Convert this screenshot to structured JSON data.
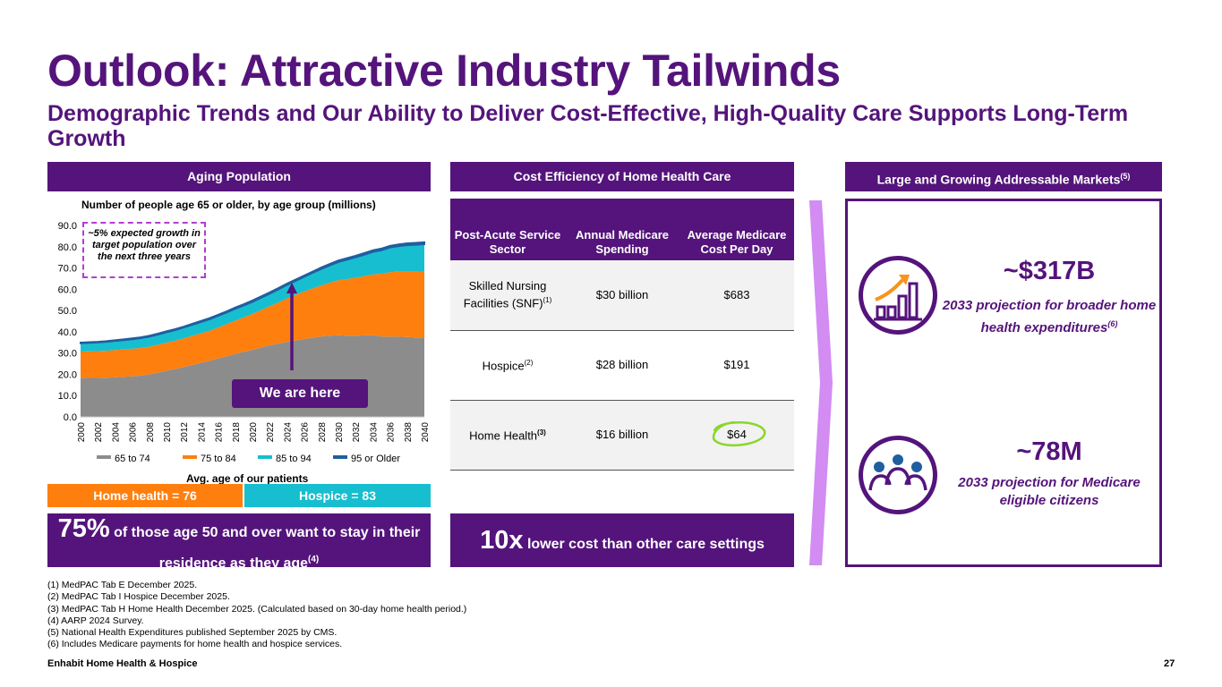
{
  "title": "Outlook: Attractive Industry Tailwinds",
  "subtitle": "Demographic Trends and Our Ability to Deliver Cost-Effective, High-Quality Care Supports Long-Term Growth",
  "aging": {
    "header": "Aging Population",
    "callout": "~5% expected growth in target population over the next three years",
    "here_label": "We are here",
    "avg_label": "Avg. age of our patients",
    "home_health_pill": "Home health = 76",
    "hospice_pill": "Hospice = 83",
    "stat_big": "75%",
    "stat_text": "of those age 50 and over want to stay in their residence as they age",
    "stat_sup": "(4)"
  },
  "chart_data": {
    "type": "area",
    "stacked": true,
    "title": "Number of people age 65 or older, by age group (millions)",
    "xlabel": "",
    "ylabel": "",
    "ylim": [
      0,
      90
    ],
    "yticks": [
      "0.0",
      "10.0",
      "20.0",
      "30.0",
      "40.0",
      "50.0",
      "60.0",
      "70.0",
      "80.0",
      "90.0"
    ],
    "x": [
      2000,
      2001,
      2002,
      2003,
      2004,
      2005,
      2006,
      2007,
      2008,
      2009,
      2010,
      2011,
      2012,
      2013,
      2014,
      2015,
      2016,
      2017,
      2018,
      2019,
      2020,
      2021,
      2022,
      2023,
      2024,
      2025,
      2026,
      2027,
      2028,
      2029,
      2030,
      2031,
      2032,
      2033,
      2034,
      2035,
      2036,
      2037,
      2038,
      2039,
      2040
    ],
    "xticks": [
      "2000",
      "2002",
      "2004",
      "2006",
      "2008",
      "2010",
      "2012",
      "2014",
      "2016",
      "2018",
      "2020",
      "2022",
      "2024",
      "2026",
      "2028",
      "2030",
      "2032",
      "2034",
      "2036",
      "2038",
      "2040"
    ],
    "series": [
      {
        "name": "65 to 74",
        "color": "#8c8c8c",
        "values": [
          18.4,
          18.3,
          18.3,
          18.4,
          18.6,
          18.8,
          19.0,
          19.4,
          20.0,
          20.8,
          21.7,
          22.5,
          23.4,
          24.4,
          25.4,
          26.4,
          27.4,
          28.5,
          29.6,
          30.6,
          31.5,
          32.6,
          33.7,
          34.4,
          35.2,
          35.9,
          36.6,
          37.2,
          37.8,
          38.2,
          38.4,
          38.2,
          38.1,
          38.3,
          38.4,
          37.8,
          37.7,
          37.7,
          37.5,
          37.3,
          37.2
        ]
      },
      {
        "name": "75 to 84",
        "color": "#ff7f0e",
        "values": [
          12.3,
          12.5,
          12.6,
          12.7,
          12.8,
          12.9,
          13.0,
          13.0,
          13.0,
          13.1,
          13.2,
          13.3,
          13.5,
          13.7,
          13.9,
          14.1,
          14.6,
          15.1,
          15.6,
          16.2,
          16.9,
          17.6,
          18.3,
          19.4,
          20.5,
          21.4,
          22.3,
          23.2,
          24.0,
          24.9,
          25.8,
          26.6,
          27.3,
          27.9,
          28.6,
          29.5,
          30.3,
          30.6,
          30.8,
          31.0,
          31.2
        ]
      },
      {
        "name": "85 to 94",
        "color": "#17becf",
        "values": [
          3.9,
          4.0,
          4.1,
          4.2,
          4.3,
          4.4,
          4.5,
          4.6,
          4.7,
          4.8,
          4.9,
          5.0,
          5.1,
          5.2,
          5.3,
          5.4,
          5.5,
          5.5,
          5.6,
          5.6,
          5.7,
          5.8,
          5.9,
          6.1,
          6.3,
          6.6,
          6.9,
          7.3,
          7.7,
          8.1,
          8.6,
          9.1,
          9.6,
          10.0,
          10.5,
          11.0,
          11.6,
          12.0,
          12.4,
          12.6,
          12.8
        ]
      },
      {
        "name": "95 or Older",
        "color": "#1f5fa0",
        "values": [
          0.3,
          0.3,
          0.3,
          0.3,
          0.3,
          0.3,
          0.4,
          0.4,
          0.4,
          0.4,
          0.4,
          0.4,
          0.4,
          0.5,
          0.5,
          0.5,
          0.5,
          0.5,
          0.6,
          0.6,
          0.6,
          0.6,
          0.6,
          0.6,
          0.6,
          0.6,
          0.6,
          0.6,
          0.7,
          0.7,
          0.7,
          0.7,
          0.7,
          0.8,
          0.8,
          0.8,
          0.8,
          0.8,
          0.9,
          0.9,
          0.9
        ]
      }
    ],
    "legend_position": "bottom",
    "grid": false
  },
  "cost": {
    "header": "Cost Efficiency of Home Health Care",
    "columns": [
      "Post-Acute Service Sector",
      "Annual Medicare Spending",
      "Average Medicare Cost Per Day"
    ],
    "rows": [
      {
        "sector": "Skilled Nursing Facilities (SNF)",
        "sup": "(1)",
        "spending": "$30 billion",
        "cost": "$683"
      },
      {
        "sector": "Hospice",
        "sup": "(2)",
        "spending": "$28 billion",
        "cost": "$191"
      },
      {
        "sector": "Home Health",
        "sup": "(3)",
        "spending": "$16 billion",
        "cost": "$64"
      }
    ],
    "stat_big": "10x",
    "stat_text": "lower cost than other care settings"
  },
  "markets": {
    "header": "Large and Growing Addressable Markets",
    "header_sup": "(5)",
    "stat1": "~$317B",
    "stat1_desc": "2033 projection for broader home health expenditures",
    "stat1_sup": "(6)",
    "stat2": "~78M",
    "stat2_desc": "2033 projection for Medicare eligible citizens",
    "icon1": "growth-chart-icon",
    "icon2": "people-group-icon"
  },
  "footnotes": [
    "(1) MedPAC Tab E December 2025.",
    "(2) MedPAC Tab I Hospice December 2025.",
    "(3) MedPAC Tab H Home Health December 2025. (Calculated based on 30-day home health period.)",
    "(4) AARP 2024 Survey.",
    "(5) National Health Expenditures published September 2025 by CMS.",
    "(6) Includes Medicare payments for home health and hospice services."
  ],
  "footer": {
    "company": "Enhabit Home Health & Hospice",
    "page": "27"
  },
  "colors": {
    "primary": "#54147b",
    "orange": "#ff7f0e",
    "teal": "#17becf",
    "accent": "#d28cf2"
  }
}
